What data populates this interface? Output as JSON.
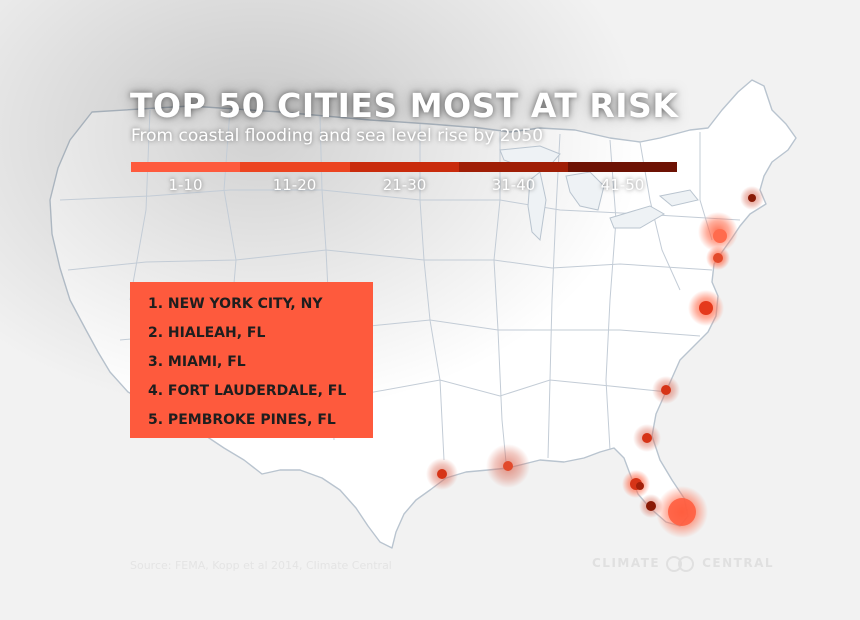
{
  "title": "TOP 50 CITIES MOST AT RISK",
  "subtitle": "From coastal flooding and sea level rise by 2050",
  "legend": [
    {
      "label": "1-10",
      "color": "#fe5a3d"
    },
    {
      "label": "11-20",
      "color": "#ec4420"
    },
    {
      "label": "21-30",
      "color": "#c92b0c"
    },
    {
      "label": "31-40",
      "color": "#9f1e06"
    },
    {
      "label": "41-50",
      "color": "#6d1204"
    }
  ],
  "top_cities": [
    "1. NEW YORK CITY, NY",
    "2. HIALEAH, FL",
    "3. MIAMI, FL",
    "4. FORT LAUDERDALE, FL",
    "5. PEMBROKE PINES, FL"
  ],
  "source": "Source: FEMA, Kopp et al 2014, Climate Central",
  "brand": {
    "left": "CLIMATE",
    "right": "CENTRAL"
  },
  "colors": {
    "accent": "#fe5a3d",
    "land": "#ffffff",
    "background": "#f2f2f2",
    "border": "#c9d1d9"
  },
  "city_markers": [
    {
      "name": "boston-marker",
      "rank_group": "41-50"
    },
    {
      "name": "new-york-marker",
      "rank_group": "1-10"
    },
    {
      "name": "new-jersey-marker",
      "rank_group": "11-20"
    },
    {
      "name": "virginia-beach-marker",
      "rank_group": "1-10"
    },
    {
      "name": "charleston-marker",
      "rank_group": "11-20"
    },
    {
      "name": "jacksonville-marker",
      "rank_group": "11-20"
    },
    {
      "name": "tampa-marker",
      "rank_group": "11-20"
    },
    {
      "name": "tampa-marker-2",
      "rank_group": "21-30"
    },
    {
      "name": "fort-myers-marker",
      "rank_group": "41-50"
    },
    {
      "name": "miami-marker",
      "rank_group": "1-10"
    },
    {
      "name": "new-orleans-marker",
      "rank_group": "1-10"
    },
    {
      "name": "houston-marker",
      "rank_group": "11-20"
    }
  ]
}
